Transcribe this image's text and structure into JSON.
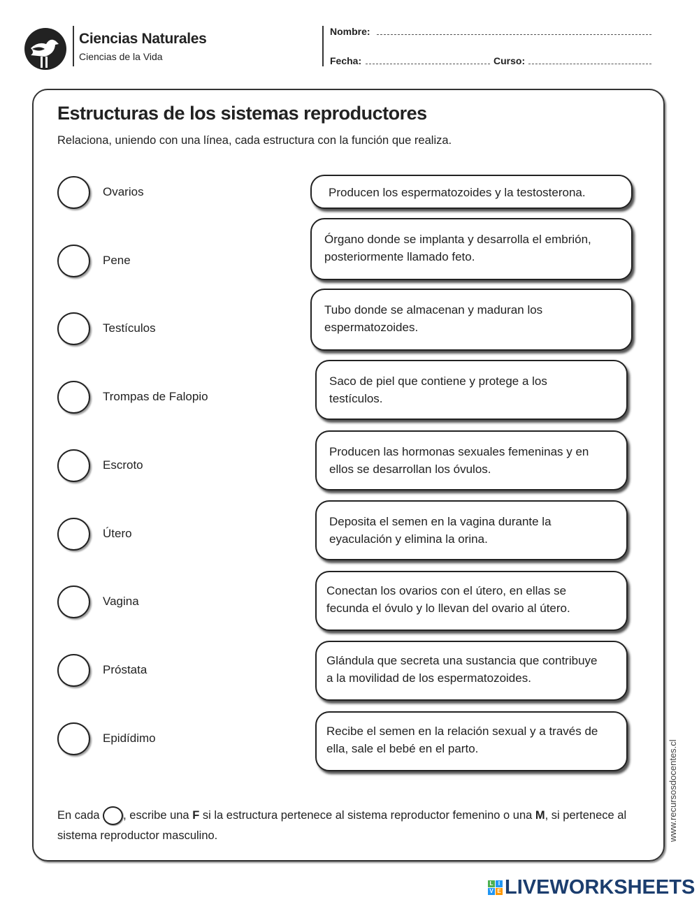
{
  "header": {
    "brand_title": "Ciencias Naturales",
    "brand_subtitle": "Ciencias de la Vida",
    "name_label": "Nombre:",
    "date_label": "Fecha:",
    "course_label": "Curso:"
  },
  "title": "Estructuras de los sistemas reproductores",
  "instruction": "Relaciona, uniendo con una línea, cada estructura con la función que realiza.",
  "structures": [
    "Ovarios",
    "Pene",
    "Testículos",
    "Trompas de Falopio",
    "Escroto",
    "Útero",
    "Vagina",
    "Próstata",
    "Epidídimo"
  ],
  "functions": [
    {
      "line1": "Producen los espermatozoides y la testosterona.",
      "line2": ""
    },
    {
      "line1": "Órgano donde se implanta y desarrolla el embrión,",
      "line2": "posteriormente llamado feto."
    },
    {
      "line1": "Tubo donde se almacenan y maduran los",
      "line2": "espermatozoides."
    },
    {
      "line1": "Saco de piel que contiene y protege a los",
      "line2": "testículos."
    },
    {
      "line1": "Producen las hormonas sexuales femeninas y en",
      "line2": "ellos se desarrollan los óvulos."
    },
    {
      "line1": "Deposita el semen en la vagina durante la",
      "line2": "eyaculación y elimina la orina."
    },
    {
      "line1": "Conectan los ovarios con el útero, en ellas se",
      "line2": "fecunda el óvulo y lo llevan del ovario al útero."
    },
    {
      "line1": "Glándula que secreta una sustancia que contribuye",
      "line2": "a la movilidad de los espermatozoides."
    },
    {
      "line1": "Recibe el semen en la relación sexual y a través de",
      "line2": "ella, sale el bebé en el parto."
    }
  ],
  "footer": {
    "t1": "En cada ",
    "t2": ", escribe una ",
    "f": "F",
    "t3": " si la estructura pertenece al sistema reproductor femenino o una ",
    "m": "M",
    "t4": ", si pertenece al sistema reproductor masculino."
  },
  "side_text": "www.recursosdocentes.cl",
  "watermark": {
    "text": "LIVEWORKSHEETS",
    "letters": [
      "L",
      "I",
      "V",
      "E"
    ],
    "colors": [
      "#4caf50",
      "#2196f3",
      "#2196f3",
      "#ff9800"
    ]
  }
}
